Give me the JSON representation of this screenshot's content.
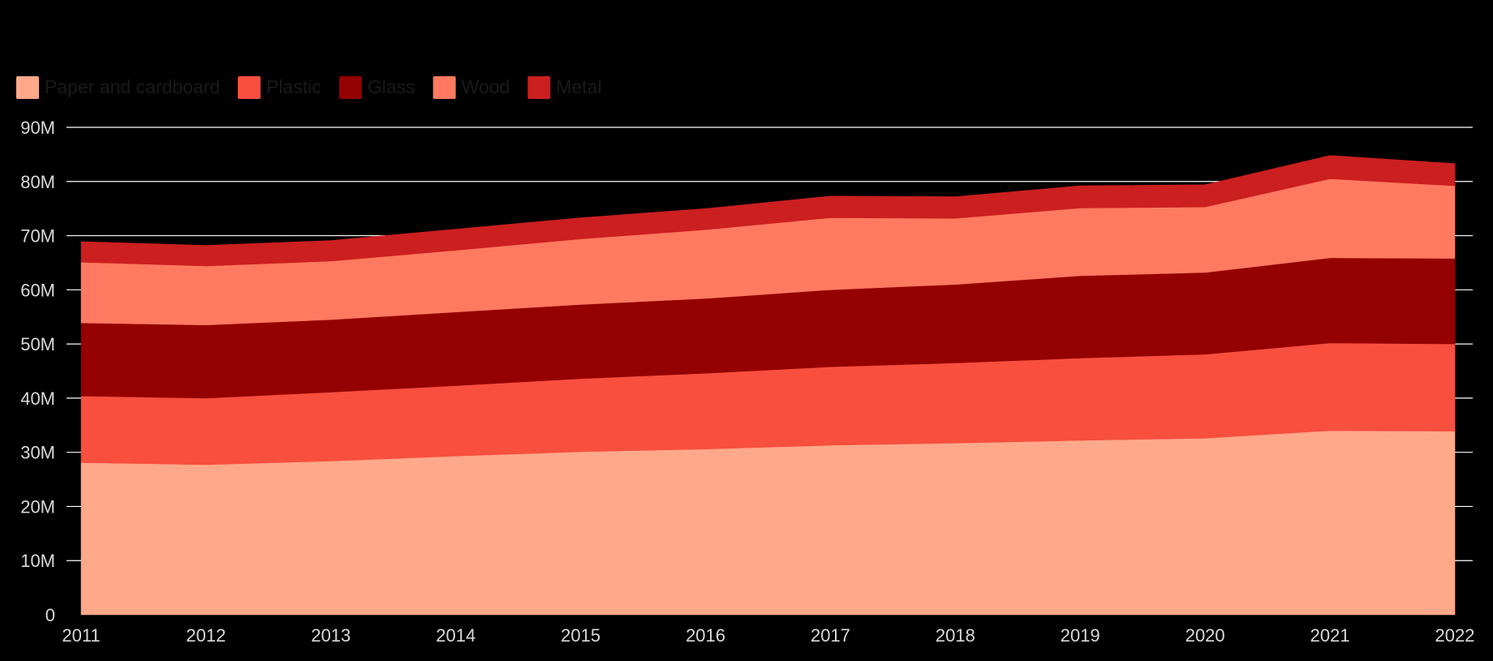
{
  "chart_data": {
    "type": "area",
    "stacked": true,
    "title": "",
    "xlabel": "",
    "ylabel": "",
    "x": [
      "2011",
      "2012",
      "2013",
      "2014",
      "2015",
      "2016",
      "2017",
      "2018",
      "2019",
      "2020",
      "2021",
      "2022"
    ],
    "ylim": [
      0,
      90000000
    ],
    "y_ticks": [
      "0",
      "10M",
      "20M",
      "30M",
      "40M",
      "50M",
      "60M",
      "70M",
      "80M",
      "90M"
    ],
    "grid": true,
    "legend_position": "top-left",
    "series": [
      {
        "name": "Paper and cardboard",
        "color": "#ffa98a",
        "values": [
          28100000,
          27700000,
          28400000,
          29300000,
          30100000,
          30600000,
          31300000,
          31700000,
          32200000,
          32600000,
          34000000,
          33900000
        ]
      },
      {
        "name": "Plastic",
        "color": "#f84f3f",
        "values": [
          12300000,
          12300000,
          12700000,
          13000000,
          13500000,
          14000000,
          14500000,
          14800000,
          15200000,
          15500000,
          16200000,
          16100000
        ]
      },
      {
        "name": "Glass",
        "color": "#950000",
        "values": [
          13500000,
          13500000,
          13400000,
          13600000,
          13700000,
          13800000,
          14200000,
          14500000,
          15200000,
          15100000,
          15700000,
          15800000
        ]
      },
      {
        "name": "Wood",
        "color": "#ff7a61",
        "values": [
          11200000,
          10900000,
          10800000,
          11400000,
          12100000,
          12700000,
          13300000,
          12200000,
          12500000,
          12100000,
          14600000,
          13400000
        ]
      },
      {
        "name": "Metal",
        "color": "#cc1f1f",
        "values": [
          3800000,
          3800000,
          3800000,
          3900000,
          3900000,
          3900000,
          4000000,
          4000000,
          4100000,
          4100000,
          4300000,
          4100000
        ]
      }
    ]
  }
}
